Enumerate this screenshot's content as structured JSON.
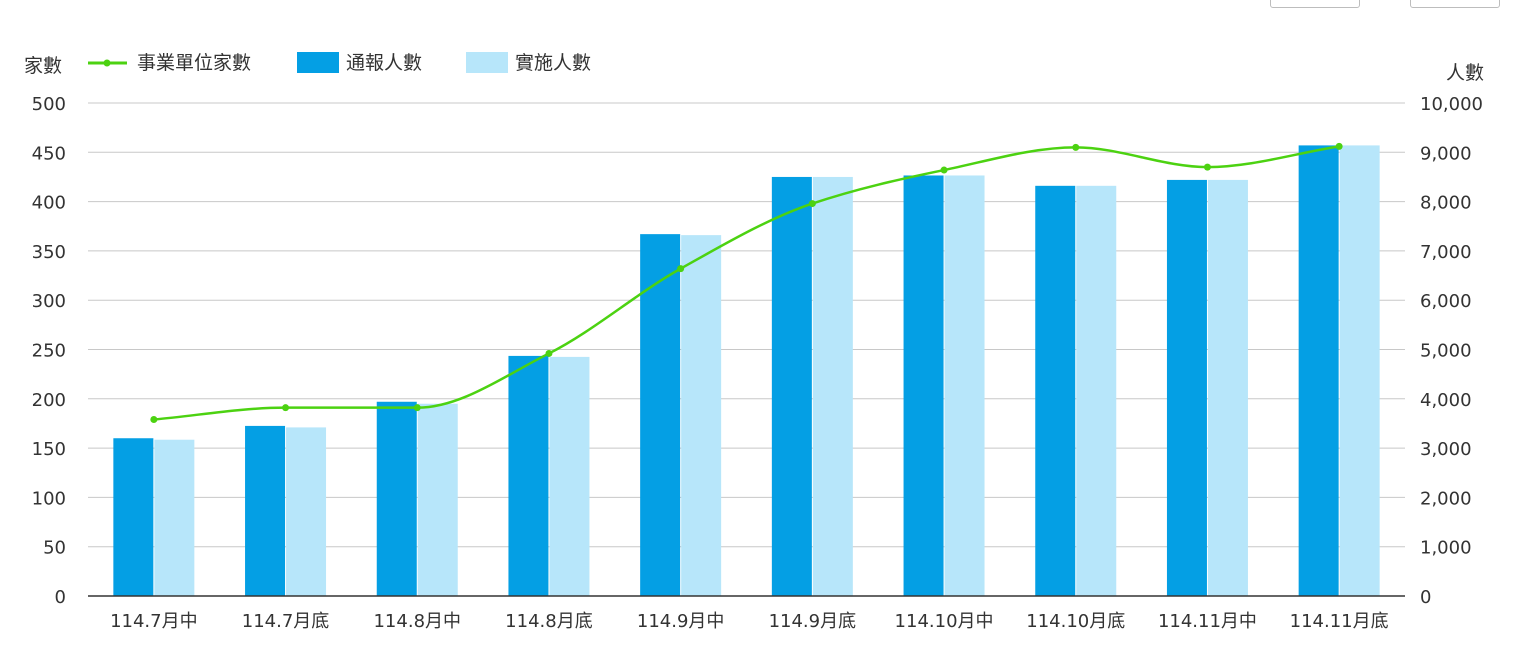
{
  "chart_data": {
    "type": "bar",
    "categories": [
      "114.7月中",
      "114.7月底",
      "114.8月中",
      "114.8月底",
      "114.9月中",
      "114.9月底",
      "114.10月中",
      "114.10月底",
      "114.11月中",
      "114.11月底"
    ],
    "left_axis": {
      "title": "家數",
      "ylim": [
        0,
        500
      ],
      "ticks": [
        0,
        50,
        100,
        150,
        200,
        250,
        300,
        350,
        400,
        450,
        500
      ],
      "tick_labels": [
        "0",
        "50",
        "100",
        "150",
        "200",
        "250",
        "300",
        "350",
        "400",
        "450",
        "500"
      ]
    },
    "right_axis": {
      "title": "人數",
      "ylim": [
        0,
        10000
      ],
      "ticks": [
        0,
        1000,
        2000,
        3000,
        4000,
        5000,
        6000,
        7000,
        8000,
        9000,
        10000
      ],
      "tick_labels": [
        "0",
        "1,000",
        "2,000",
        "3,000",
        "4,000",
        "5,000",
        "6,000",
        "7,000",
        "8,000",
        "9,000",
        "10,000"
      ]
    },
    "series": [
      {
        "name": "事業單位家數",
        "type": "line",
        "axis": "left",
        "color": "#4cd211",
        "smooth": true,
        "values": [
          179,
          191,
          191,
          246,
          332,
          398,
          432,
          455,
          435,
          456
        ]
      },
      {
        "name": "通報人數",
        "type": "bar",
        "axis": "right",
        "color": "#049fe4",
        "values": [
          3200,
          3450,
          3940,
          4870,
          7340,
          8500,
          8530,
          8320,
          8440,
          9140
        ]
      },
      {
        "name": "實施人數",
        "type": "bar",
        "axis": "right",
        "color": "#b7e6fa",
        "values": [
          3170,
          3420,
          3900,
          4850,
          7320,
          8500,
          8530,
          8320,
          8440,
          9140
        ]
      }
    ],
    "grid": true,
    "legend_position": "top-left"
  }
}
